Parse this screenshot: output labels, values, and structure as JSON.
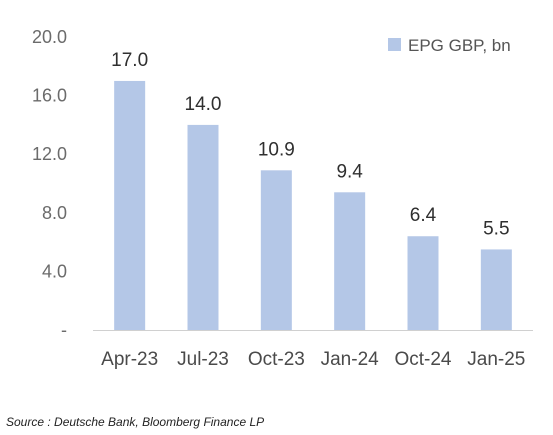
{
  "chart_data": {
    "type": "bar",
    "categories": [
      "Apr-23",
      "Jul-23",
      "Oct-23",
      "Jan-24",
      "Oct-24",
      "Jan-25"
    ],
    "series": [
      {
        "name": "EPG GBP, bn",
        "values": [
          17.0,
          14.0,
          10.9,
          9.4,
          6.4,
          5.5
        ],
        "color": "#b4c7e7"
      }
    ],
    "data_labels": [
      "17.0",
      "14.0",
      "10.9",
      "9.4",
      "6.4",
      "5.5"
    ],
    "yticks": [
      0,
      4,
      8,
      12,
      16,
      20
    ],
    "ytick_labels": [
      "-",
      "4.0",
      "8.0",
      "12.0",
      "16.0",
      "20.0"
    ],
    "ylim": [
      0,
      20
    ],
    "grid": false,
    "legend": {
      "position": "top-right",
      "label": "EPG GBP, bn"
    }
  },
  "source": "Source : Deutsche Bank, Bloomberg Finance LP"
}
